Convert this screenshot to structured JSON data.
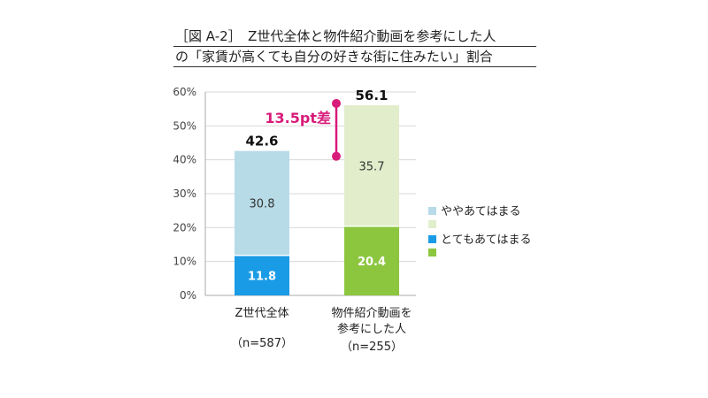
{
  "title": {
    "line1": "［図 A-2］　Z世代全体と物件紹介動画を参考にした人",
    "line2": "の「家賃が高くても自分の好きな街に住みたい」割合"
  },
  "chart_data": {
    "type": "bar",
    "stacked": true,
    "ylim": [
      0,
      60
    ],
    "yticks": [
      "0%",
      "10%",
      "20%",
      "30%",
      "40%",
      "50%",
      "60%"
    ],
    "grid": true,
    "categories": [
      {
        "lines": [
          "Z世代全体"
        ],
        "n": "（n=587）"
      },
      {
        "lines": [
          "物件紹介動画を",
          "参考にした人"
        ],
        "n": "（n=255）"
      }
    ],
    "series": [
      {
        "name": "とてもあてはまる",
        "values": [
          11.8,
          20.4
        ],
        "labels": [
          "11.8",
          "20.4"
        ],
        "colors": [
          "#1a9be6",
          "#8cc63f"
        ]
      },
      {
        "name": "ややあてはまる",
        "values": [
          30.8,
          35.7
        ],
        "labels": [
          "30.8",
          "35.7"
        ],
        "colors": [
          "#b7dbe7",
          "#e2edcb"
        ]
      }
    ],
    "totals": [
      "42.6",
      "56.1"
    ],
    "annotation": "13.5pt差",
    "legend_placement": "right",
    "legend_colors": {
      "top": [
        "#b7dbe7",
        "#e2edcb"
      ],
      "bottom": [
        "#1a9be6",
        "#8cc63f"
      ]
    },
    "annotation_color": "#d81b7a"
  }
}
